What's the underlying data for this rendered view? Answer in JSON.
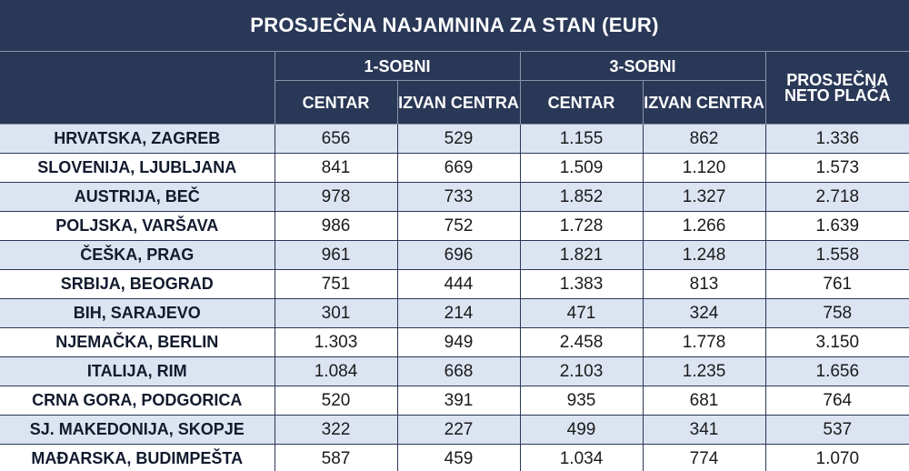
{
  "title": "PROSJEČNA NAJAMNINA ZA STAN (EUR)",
  "header": {
    "group1": "1-SOBNI",
    "group2": "3-SOBNI",
    "avg_salary": "PROSJEČNA NETO PLAĆA",
    "sub": [
      "CENTAR",
      "IZVAN CENTRA",
      "CENTAR",
      "IZVAN CENTRA"
    ]
  },
  "colors": {
    "header_bg": "#2a3857",
    "row_shade": "#dce4f2",
    "row_plain": "#ffffff"
  },
  "rows": [
    {
      "city": "HRVATSKA, ZAGREB",
      "v": [
        "656",
        "529",
        "1.155",
        "862",
        "1.336"
      ]
    },
    {
      "city": "SLOVENIJA, LJUBLJANA",
      "v": [
        "841",
        "669",
        "1.509",
        "1.120",
        "1.573"
      ]
    },
    {
      "city": "AUSTRIJA, BEČ",
      "v": [
        "978",
        "733",
        "1.852",
        "1.327",
        "2.718"
      ]
    },
    {
      "city": "POLJSKA, VARŠAVA",
      "v": [
        "986",
        "752",
        "1.728",
        "1.266",
        "1.639"
      ]
    },
    {
      "city": "ČEŠKA, PRAG",
      "v": [
        "961",
        "696",
        "1.821",
        "1.248",
        "1.558"
      ]
    },
    {
      "city": "SRBIJA, BEOGRAD",
      "v": [
        "751",
        "444",
        "1.383",
        "813",
        "761"
      ]
    },
    {
      "city": "BIH, SARAJEVO",
      "v": [
        "301",
        "214",
        "471",
        "324",
        "758"
      ]
    },
    {
      "city": "NJEMAČKA, BERLIN",
      "v": [
        "1.303",
        "949",
        "2.458",
        "1.778",
        "3.150"
      ]
    },
    {
      "city": "ITALIJA, RIM",
      "v": [
        "1.084",
        "668",
        "2.103",
        "1.235",
        "1.656"
      ]
    },
    {
      "city": "CRNA GORA, PODGORICA",
      "v": [
        "520",
        "391",
        "935",
        "681",
        "764"
      ]
    },
    {
      "city": "SJ. MAKEDONIJA, SKOPJE",
      "v": [
        "322",
        "227",
        "499",
        "341",
        "537"
      ]
    },
    {
      "city": "MAĐARSKA, BUDIMPEŠTA",
      "v": [
        "587",
        "459",
        "1.034",
        "774",
        "1.070"
      ]
    }
  ]
}
